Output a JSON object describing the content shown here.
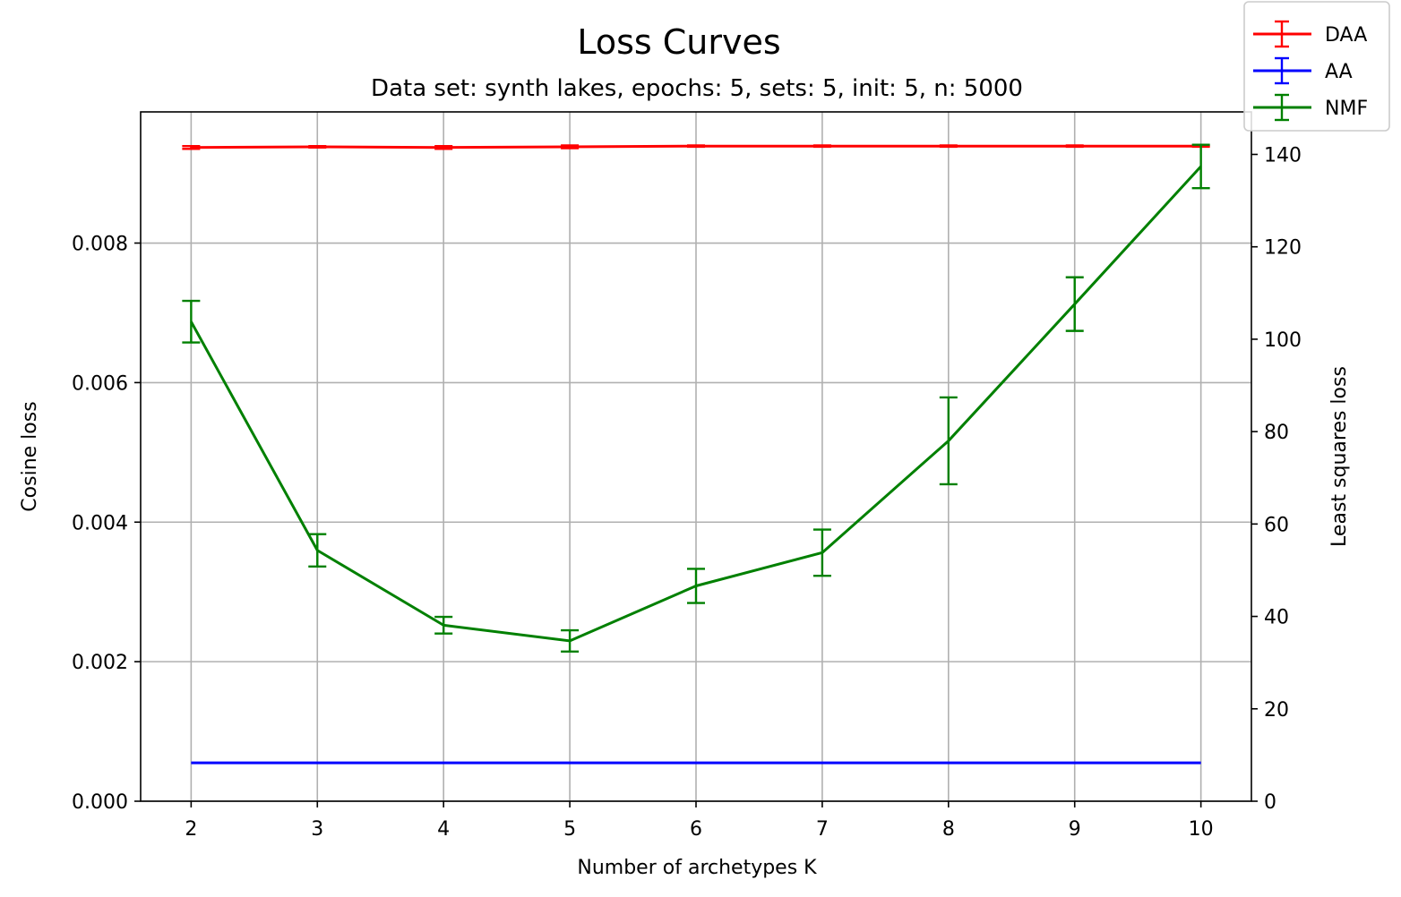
{
  "chart_data": {
    "type": "line",
    "title": "Loss Curves",
    "subtitle": "Data set:  synth lakes, epochs: 5, sets: 5, init: 5, n: 5000",
    "xlabel": "Number of archetypes K",
    "ylabel_left": "Cosine loss",
    "ylabel_right": "Least squares loss",
    "x": [
      2,
      3,
      4,
      5,
      6,
      7,
      8,
      9,
      10
    ],
    "xlim": [
      1.6,
      10.4
    ],
    "ylim_left": [
      0,
      0.00988
    ],
    "ylim_right": [
      0,
      149.2
    ],
    "x_ticks": [
      "2",
      "3",
      "4",
      "5",
      "6",
      "7",
      "8",
      "9",
      "10"
    ],
    "y_ticks_left": [
      "0.000",
      "0.002",
      "0.004",
      "0.006",
      "0.008"
    ],
    "y_tick_values_left": [
      0,
      0.002,
      0.004,
      0.006,
      0.008
    ],
    "y_ticks_right": [
      "0",
      "20",
      "40",
      "60",
      "80",
      "100",
      "120",
      "140"
    ],
    "y_tick_values_right": [
      0,
      20,
      40,
      60,
      80,
      100,
      120,
      140
    ],
    "grid": true,
    "legend_position": "top-right",
    "series": [
      {
        "name": "DAA",
        "color": "#ff0000",
        "axis": "left",
        "values": [
          0.00937,
          0.00938,
          0.00937,
          0.00938,
          0.00939,
          0.00939,
          0.00939,
          0.00939,
          0.00939
        ],
        "errors": [
          2e-05,
          1e-05,
          2e-05,
          2e-05,
          1e-05,
          1e-05,
          1e-05,
          1e-05,
          1e-05
        ]
      },
      {
        "name": "AA",
        "color": "#0000ff",
        "axis": "right",
        "values": [
          8.3,
          8.3,
          8.3,
          8.3,
          8.3,
          8.3,
          8.3,
          8.3,
          8.3
        ],
        "errors": [
          0,
          0,
          0,
          0,
          0,
          0,
          0,
          0,
          0
        ]
      },
      {
        "name": "NMF",
        "color": "#008000",
        "axis": "right",
        "values": [
          103.8,
          54.3,
          38.1,
          34.7,
          46.6,
          53.8,
          78.0,
          107.6,
          137.4
        ],
        "errors": [
          4.5,
          3.5,
          1.8,
          2.3,
          3.7,
          5.0,
          9.4,
          5.8,
          4.7
        ]
      }
    ]
  }
}
